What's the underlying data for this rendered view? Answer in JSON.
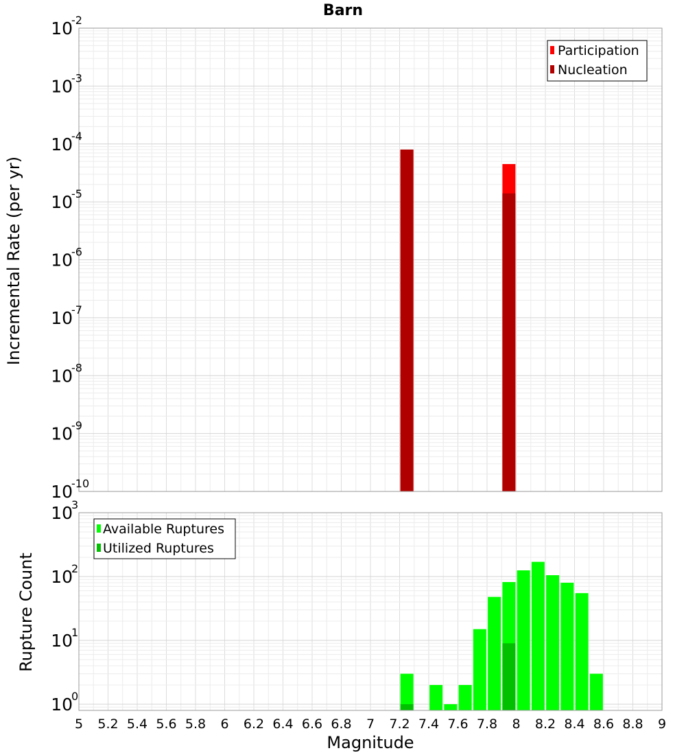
{
  "chart_data": [
    {
      "type": "bar",
      "title": "Barn",
      "ylabel": "Incremental Rate (per yr)",
      "xlabel": "",
      "y_scale": "log",
      "ylim": [
        1e-10,
        0.01
      ],
      "xlim": [
        5,
        9
      ],
      "y_tick_bases": [
        "10",
        "10",
        "10",
        "10",
        "10",
        "10",
        "10",
        "10",
        "10"
      ],
      "y_tick_exponents": [
        "-10",
        "-9",
        "-8",
        "-7",
        "-6",
        "-5",
        "-4",
        "-3",
        "-2"
      ],
      "y_tick_values": [
        1e-10,
        1e-09,
        1e-08,
        1e-07,
        1e-06,
        1e-05,
        0.0001,
        0.001,
        0.01
      ],
      "grid": true,
      "legend_position": "top-right",
      "series": [
        {
          "name": "Participation",
          "color": "#ff0000",
          "x": [
            7.25,
            7.95
          ],
          "values": [
            8e-05,
            4.5e-05
          ]
        },
        {
          "name": "Nucleation",
          "color": "#b00000",
          "x": [
            7.25,
            7.95
          ],
          "values": [
            8e-05,
            1.4e-05
          ]
        }
      ]
    },
    {
      "type": "bar",
      "title": "",
      "ylabel": "Rupture Count",
      "xlabel": "Magnitude",
      "y_scale": "log",
      "ylim": [
        0.8,
        1000
      ],
      "xlim": [
        5,
        9
      ],
      "y_tick_bases": [
        "10",
        "10",
        "10",
        "10"
      ],
      "y_tick_exponents": [
        "0",
        "1",
        "2",
        "3"
      ],
      "y_tick_values": [
        1,
        10,
        100,
        1000
      ],
      "x_tick_labels": [
        "5",
        "5.2",
        "5.4",
        "5.6",
        "5.8",
        "6",
        "6.2",
        "6.4",
        "6.6",
        "6.8",
        "7",
        "7.2",
        "7.4",
        "7.6",
        "7.8",
        "8",
        "8.2",
        "8.4",
        "8.6",
        "8.8",
        "9"
      ],
      "x_tick_values": [
        5,
        5.2,
        5.4,
        5.6,
        5.8,
        6,
        6.2,
        6.4,
        6.6,
        6.8,
        7,
        7.2,
        7.4,
        7.6,
        7.8,
        8,
        8.2,
        8.4,
        8.6,
        8.8,
        9
      ],
      "grid": true,
      "legend_position": "top-left",
      "series": [
        {
          "name": "Available Ruptures",
          "color": "#00ff00",
          "x": [
            7.25,
            7.45,
            7.55,
            7.65,
            7.75,
            7.85,
            7.95,
            8.05,
            8.15,
            8.25,
            8.35,
            8.45,
            8.55
          ],
          "values": [
            3,
            2,
            1,
            2,
            15,
            48,
            82,
            125,
            170,
            105,
            80,
            55,
            3
          ]
        },
        {
          "name": "Utilized Ruptures",
          "color": "#00c000",
          "x": [
            7.25,
            7.95
          ],
          "values": [
            1,
            9
          ]
        }
      ]
    }
  ]
}
